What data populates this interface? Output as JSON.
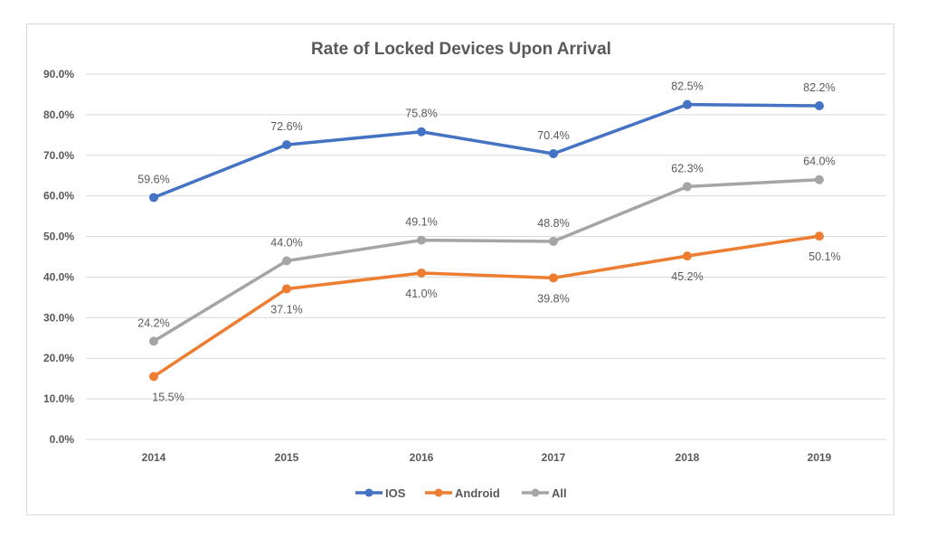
{
  "chart_data": {
    "type": "line",
    "title": "Rate of Locked Devices Upon Arrival",
    "xlabel": "",
    "ylabel": "",
    "categories": [
      "2014",
      "2015",
      "2016",
      "2017",
      "2018",
      "2019"
    ],
    "ylim": [
      0,
      90
    ],
    "yticks": [
      0,
      10,
      20,
      30,
      40,
      50,
      60,
      70,
      80,
      90
    ],
    "ytick_labels": [
      "0.0%",
      "10.0%",
      "20.0%",
      "30.0%",
      "40.0%",
      "50.0%",
      "60.0%",
      "70.0%",
      "80.0%",
      "90.0%"
    ],
    "grid": true,
    "legend_position": "bottom",
    "series": [
      {
        "name": "IOS",
        "color": "#4472c4",
        "values": [
          59.6,
          72.6,
          75.8,
          70.4,
          82.5,
          82.2
        ],
        "labels": [
          "59.6%",
          "72.6%",
          "75.8%",
          "70.4%",
          "82.5%",
          "82.2%"
        ],
        "label_pos": [
          "above",
          "above",
          "above",
          "above",
          "above",
          "above"
        ]
      },
      {
        "name": "Android",
        "color": "#ed7d31",
        "values": [
          15.5,
          37.1,
          41.0,
          39.8,
          45.2,
          50.1
        ],
        "labels": [
          "15.5%",
          "37.1%",
          "41.0%",
          "39.8%",
          "45.2%",
          "50.1%"
        ],
        "label_pos": [
          "below",
          "below",
          "below",
          "below",
          "below",
          "below"
        ]
      },
      {
        "name": "All",
        "color": "#a5a5a5",
        "values": [
          24.2,
          44.0,
          49.1,
          48.8,
          62.3,
          64.0
        ],
        "labels": [
          "24.2%",
          "44.0%",
          "49.1%",
          "48.8%",
          "62.3%",
          "64.0%"
        ],
        "label_pos": [
          "above",
          "above",
          "above",
          "above",
          "above",
          "above"
        ]
      }
    ]
  }
}
